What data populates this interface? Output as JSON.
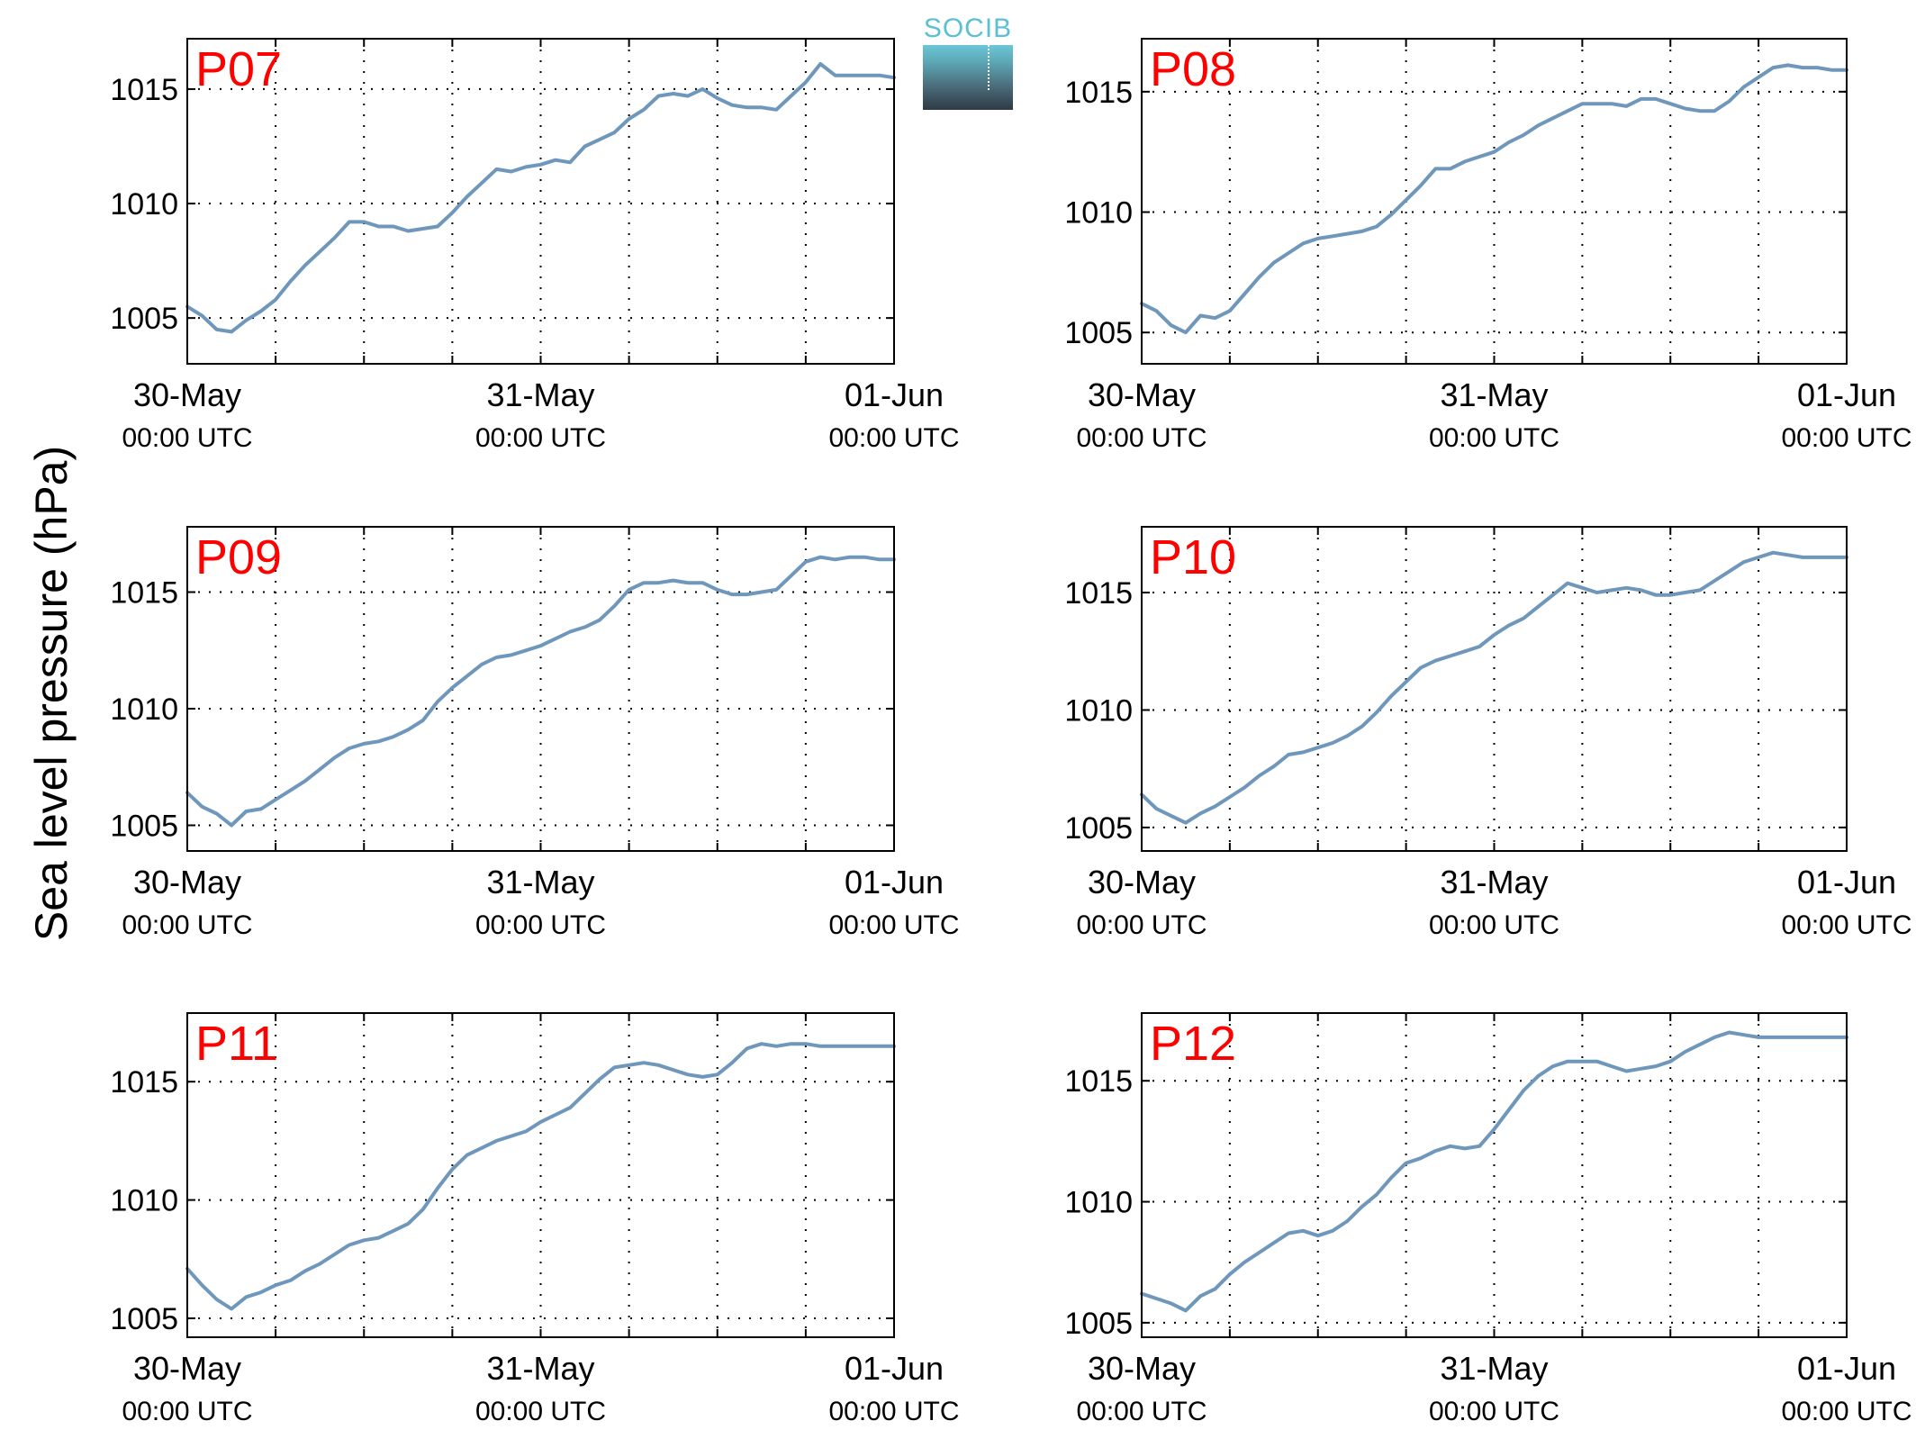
{
  "figure": {
    "ylabel": "Sea level pressure (hPa)",
    "logo_text": "SOCIB",
    "line_color": "#6f97bb",
    "station_label_color": "#ff0000"
  },
  "chart_data": [
    {
      "type": "line",
      "station": "P07",
      "x_tick_labels": [
        [
          "30-May",
          "00:00 UTC"
        ],
        [
          "31-May",
          "00:00 UTC"
        ],
        [
          "01-Jun",
          "00:00 UTC"
        ]
      ],
      "x_range": [
        "2015-05-30 00:00",
        "2015-06-01 00:00"
      ],
      "yticks": [
        1005,
        1010,
        1015
      ],
      "ylim": [
        1003,
        1017.2
      ],
      "grid": true,
      "series": [
        {
          "x_hours": [
            0,
            1,
            2,
            3,
            4,
            5,
            6,
            7,
            8,
            9,
            10,
            11,
            12,
            13,
            14,
            15,
            16,
            17,
            18,
            19,
            20,
            21,
            22,
            23,
            24,
            25,
            26,
            27,
            28,
            29,
            30,
            31,
            32,
            33,
            34,
            35,
            36,
            37,
            38,
            39,
            40,
            41,
            42,
            43,
            44,
            45,
            46,
            47,
            48
          ],
          "values": [
            1005.5,
            1005.1,
            1004.5,
            1004.4,
            1004.9,
            1005.3,
            1005.8,
            1006.6,
            1007.3,
            1007.9,
            1008.5,
            1009.2,
            1009.2,
            1009.0,
            1009.0,
            1008.8,
            1008.9,
            1009.0,
            1009.6,
            1010.3,
            1010.9,
            1011.5,
            1011.4,
            1011.6,
            1011.7,
            1011.9,
            1011.8,
            1012.5,
            1012.8,
            1013.1,
            1013.7,
            1014.1,
            1014.7,
            1014.8,
            1014.7,
            1015.0,
            1014.6,
            1014.3,
            1014.2,
            1014.2,
            1014.1,
            1014.7,
            1015.3,
            1016.1,
            1015.6,
            1015.6,
            1015.6,
            1015.6,
            1015.5
          ]
        }
      ]
    },
    {
      "type": "line",
      "station": "P08",
      "x_tick_labels": [
        [
          "30-May",
          "00:00 UTC"
        ],
        [
          "31-May",
          "00:00 UTC"
        ],
        [
          "01-Jun",
          "00:00 UTC"
        ]
      ],
      "x_range": [
        "2015-05-30 00:00",
        "2015-06-01 00:00"
      ],
      "yticks": [
        1005,
        1010,
        1015
      ],
      "ylim": [
        1003.7,
        1017.2
      ],
      "grid": true,
      "series": [
        {
          "x_hours": [
            0,
            1,
            2,
            3,
            4,
            5,
            6,
            7,
            8,
            9,
            10,
            11,
            12,
            13,
            14,
            15,
            16,
            17,
            18,
            19,
            20,
            21,
            22,
            23,
            24,
            25,
            26,
            27,
            28,
            29,
            30,
            31,
            32,
            33,
            34,
            35,
            36,
            37,
            38,
            39,
            40,
            41,
            42,
            43,
            44,
            45,
            46,
            47,
            48
          ],
          "values": [
            1006.2,
            1005.9,
            1005.3,
            1005.0,
            1005.7,
            1005.6,
            1005.9,
            1006.6,
            1007.3,
            1007.9,
            1008.3,
            1008.7,
            1008.9,
            1009.0,
            1009.1,
            1009.2,
            1009.4,
            1009.9,
            1010.5,
            1011.1,
            1011.8,
            1011.8,
            1012.1,
            1012.3,
            1012.5,
            1012.9,
            1013.2,
            1013.6,
            1013.9,
            1014.2,
            1014.5,
            1014.5,
            1014.5,
            1014.4,
            1014.7,
            1014.7,
            1014.5,
            1014.3,
            1014.2,
            1014.2,
            1014.6,
            1015.2,
            1015.6,
            1016.0,
            1016.1,
            1016.0,
            1016.0,
            1015.9,
            1015.9
          ]
        }
      ]
    },
    {
      "type": "line",
      "station": "P09",
      "x_tick_labels": [
        [
          "30-May",
          "00:00 UTC"
        ],
        [
          "31-May",
          "00:00 UTC"
        ],
        [
          "01-Jun",
          "00:00 UTC"
        ]
      ],
      "x_range": [
        "2015-05-30 00:00",
        "2015-06-01 00:00"
      ],
      "yticks": [
        1005,
        1010,
        1015
      ],
      "ylim": [
        1003.9,
        1017.8
      ],
      "grid": true,
      "series": [
        {
          "x_hours": [
            0,
            1,
            2,
            3,
            4,
            5,
            6,
            7,
            8,
            9,
            10,
            11,
            12,
            13,
            14,
            15,
            16,
            17,
            18,
            19,
            20,
            21,
            22,
            23,
            24,
            25,
            26,
            27,
            28,
            29,
            30,
            31,
            32,
            33,
            34,
            35,
            36,
            37,
            38,
            39,
            40,
            41,
            42,
            43,
            44,
            45,
            46,
            47,
            48
          ],
          "values": [
            1006.4,
            1005.8,
            1005.5,
            1005.0,
            1005.6,
            1005.7,
            1006.1,
            1006.5,
            1006.9,
            1007.4,
            1007.9,
            1008.3,
            1008.5,
            1008.6,
            1008.8,
            1009.1,
            1009.5,
            1010.3,
            1010.9,
            1011.4,
            1011.9,
            1012.2,
            1012.3,
            1012.5,
            1012.7,
            1013.0,
            1013.3,
            1013.5,
            1013.8,
            1014.4,
            1015.1,
            1015.4,
            1015.4,
            1015.5,
            1015.4,
            1015.4,
            1015.1,
            1014.9,
            1014.9,
            1015.0,
            1015.1,
            1015.7,
            1016.3,
            1016.5,
            1016.4,
            1016.5,
            1016.5,
            1016.4,
            1016.4
          ]
        }
      ]
    },
    {
      "type": "line",
      "station": "P10",
      "x_tick_labels": [
        [
          "30-May",
          "00:00 UTC"
        ],
        [
          "31-May",
          "00:00 UTC"
        ],
        [
          "01-Jun",
          "00:00 UTC"
        ]
      ],
      "x_range": [
        "2015-05-30 00:00",
        "2015-06-01 00:00"
      ],
      "yticks": [
        1005,
        1010,
        1015
      ],
      "ylim": [
        1004,
        1017.8
      ],
      "grid": true,
      "series": [
        {
          "x_hours": [
            0,
            1,
            2,
            3,
            4,
            5,
            6,
            7,
            8,
            9,
            10,
            11,
            12,
            13,
            14,
            15,
            16,
            17,
            18,
            19,
            20,
            21,
            22,
            23,
            24,
            25,
            26,
            27,
            28,
            29,
            30,
            31,
            32,
            33,
            34,
            35,
            36,
            37,
            38,
            39,
            40,
            41,
            42,
            43,
            44,
            45,
            46,
            47,
            48
          ],
          "values": [
            1006.4,
            1005.8,
            1005.5,
            1005.2,
            1005.6,
            1005.9,
            1006.3,
            1006.7,
            1007.2,
            1007.6,
            1008.1,
            1008.2,
            1008.4,
            1008.6,
            1008.9,
            1009.3,
            1009.9,
            1010.6,
            1011.2,
            1011.8,
            1012.1,
            1012.3,
            1012.5,
            1012.7,
            1013.2,
            1013.6,
            1013.9,
            1014.4,
            1014.9,
            1015.4,
            1015.2,
            1015.0,
            1015.1,
            1015.2,
            1015.1,
            1014.9,
            1014.9,
            1015.0,
            1015.1,
            1015.5,
            1015.9,
            1016.3,
            1016.5,
            1016.7,
            1016.6,
            1016.5,
            1016.5,
            1016.5,
            1016.5
          ]
        }
      ]
    },
    {
      "type": "line",
      "station": "P11",
      "x_tick_labels": [
        [
          "30-May",
          "00:00 UTC"
        ],
        [
          "31-May",
          "00:00 UTC"
        ],
        [
          "01-Jun",
          "00:00 UTC"
        ]
      ],
      "x_range": [
        "2015-05-30 00:00",
        "2015-06-01 00:00"
      ],
      "yticks": [
        1005,
        1010,
        1015
      ],
      "ylim": [
        1004.2,
        1017.9
      ],
      "grid": true,
      "series": [
        {
          "x_hours": [
            0,
            1,
            2,
            3,
            4,
            5,
            6,
            7,
            8,
            9,
            10,
            11,
            12,
            13,
            14,
            15,
            16,
            17,
            18,
            19,
            20,
            21,
            22,
            23,
            24,
            25,
            26,
            27,
            28,
            29,
            30,
            31,
            32,
            33,
            34,
            35,
            36,
            37,
            38,
            39,
            40,
            41,
            42,
            43,
            44,
            45,
            46,
            47,
            48
          ],
          "values": [
            1007.1,
            1006.4,
            1005.8,
            1005.4,
            1005.9,
            1006.1,
            1006.4,
            1006.6,
            1007.0,
            1007.3,
            1007.7,
            1008.1,
            1008.3,
            1008.4,
            1008.7,
            1009.0,
            1009.6,
            1010.5,
            1011.3,
            1011.9,
            1012.2,
            1012.5,
            1012.7,
            1012.9,
            1013.3,
            1013.6,
            1013.9,
            1014.5,
            1015.1,
            1015.6,
            1015.7,
            1015.8,
            1015.7,
            1015.5,
            1015.3,
            1015.2,
            1015.3,
            1015.8,
            1016.4,
            1016.6,
            1016.5,
            1016.6,
            1016.6,
            1016.5,
            1016.5,
            1016.5,
            1016.5,
            1016.5,
            1016.5
          ]
        }
      ]
    },
    {
      "type": "line",
      "station": "P12",
      "x_tick_labels": [
        [
          "30-May",
          "00:00 UTC"
        ],
        [
          "31-May",
          "00:00 UTC"
        ],
        [
          "01-Jun",
          "00:00 UTC"
        ]
      ],
      "x_range": [
        "2015-05-30 00:00",
        "2015-06-01 00:00"
      ],
      "yticks": [
        1005,
        1010,
        1015
      ],
      "ylim": [
        1004.4,
        1017.8
      ],
      "grid": true,
      "series": [
        {
          "x_hours": [
            0,
            1,
            2,
            3,
            4,
            5,
            6,
            7,
            8,
            9,
            10,
            11,
            12,
            13,
            14,
            15,
            16,
            17,
            18,
            19,
            20,
            21,
            22,
            23,
            24,
            25,
            26,
            27,
            28,
            29,
            30,
            31,
            32,
            33,
            34,
            35,
            36,
            37,
            38,
            39,
            40,
            41,
            42,
            43,
            44,
            45,
            46,
            47,
            48
          ],
          "values": [
            1006.2,
            1006.0,
            1005.8,
            1005.5,
            1006.1,
            1006.4,
            1007.0,
            1007.5,
            1007.9,
            1008.3,
            1008.7,
            1008.8,
            1008.6,
            1008.8,
            1009.2,
            1009.8,
            1010.3,
            1011.0,
            1011.6,
            1011.8,
            1012.1,
            1012.3,
            1012.2,
            1012.3,
            1013.0,
            1013.8,
            1014.6,
            1015.2,
            1015.6,
            1015.8,
            1015.8,
            1015.8,
            1015.6,
            1015.4,
            1015.5,
            1015.6,
            1015.8,
            1016.2,
            1016.5,
            1016.8,
            1017.0,
            1016.9,
            1016.8,
            1016.8,
            1016.8,
            1016.8,
            1016.8,
            1016.8,
            1016.8
          ]
        }
      ]
    }
  ]
}
